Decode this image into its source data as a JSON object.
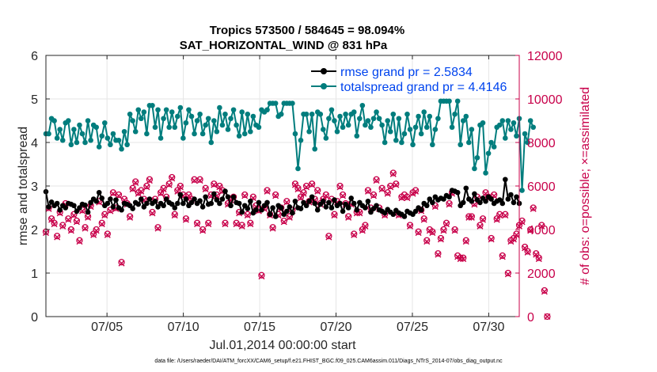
{
  "chart_data": {
    "type": "line",
    "title": "Tropics 573500 / 584645 = 98.094%",
    "subtitle": "SAT_HORIZONTAL_WIND @ 831 hPa",
    "xlabel": "Jul.01,2014 00:00:00 start",
    "ylabel": "rmse and totalspread",
    "y2label": "# of obs: o=possible; ×=assimilated",
    "xlim": [
      1,
      32
    ],
    "ylim": [
      0,
      6
    ],
    "y2lim": [
      0,
      12000
    ],
    "x_ticks": [
      5,
      10,
      15,
      20,
      25,
      30
    ],
    "x_tick_labels": [
      "07/05",
      "07/10",
      "07/15",
      "07/20",
      "07/25",
      "07/30"
    ],
    "y_ticks": [
      0,
      1,
      2,
      3,
      4,
      5,
      6
    ],
    "y_tick_labels": [
      "0",
      "1",
      "2",
      "3",
      "4",
      "5",
      "6"
    ],
    "y2_ticks": [
      0,
      2000,
      4000,
      6000,
      8000,
      10000,
      12000
    ],
    "y2_tick_labels": [
      "0",
      "2000",
      "4000",
      "6000",
      "8000",
      "10000",
      "12000"
    ],
    "grid": true,
    "legend_position": "top-right",
    "footer": "data file: /Users/raeder/DAI/ATM_forcXX/CAM6_setup/f.e21.FHIST_BGC.f09_025.CAM6assim.011/Diags_NTrS_2014-07/obs_diag_output.nc",
    "colors": {
      "rmse": "#000000",
      "totalspread": "#007d7d",
      "obs": "#c8004a",
      "grid": "#e6e6e6"
    },
    "series": [
      {
        "name": "rmse",
        "legend": "rmse grand pr = 2.5834",
        "axis": "left",
        "values": [
          2.87,
          2.52,
          2.63,
          2.55,
          2.6,
          2.45,
          2.55,
          2.5,
          2.6,
          2.58,
          2.55,
          2.42,
          2.5,
          2.58,
          2.56,
          2.4,
          2.62,
          2.7,
          2.65,
          2.85,
          2.72,
          2.55,
          2.6,
          2.7,
          2.52,
          2.68,
          2.5,
          2.45,
          2.6,
          2.58,
          2.55,
          2.48,
          2.62,
          2.58,
          2.7,
          2.52,
          2.6,
          2.7,
          2.6,
          2.65,
          2.52,
          2.6,
          2.55,
          2.7,
          2.62,
          2.58,
          2.5,
          2.6,
          2.8,
          2.6,
          2.7,
          2.55,
          2.62,
          2.7,
          2.6,
          2.66,
          2.52,
          2.75,
          2.58,
          2.6,
          2.82,
          2.68,
          2.6,
          2.7,
          2.88,
          2.75,
          2.55,
          2.75,
          2.62,
          2.6,
          2.4,
          2.55,
          2.48,
          2.65,
          2.38,
          2.45,
          2.62,
          2.45,
          2.55,
          2.62,
          2.35,
          2.5,
          2.3,
          2.55,
          2.5,
          2.35,
          2.42,
          2.52,
          2.38,
          2.65,
          2.5,
          2.48,
          2.62,
          2.55,
          2.65,
          2.75,
          2.6,
          2.45,
          2.58,
          2.65,
          2.52,
          2.62,
          2.5,
          2.68,
          2.55,
          2.6,
          2.42,
          2.58,
          2.5,
          2.72,
          2.6,
          2.45,
          2.62,
          2.55,
          2.5,
          2.65,
          2.4,
          2.48,
          2.55,
          2.45,
          2.42,
          2.38,
          2.46,
          2.4,
          2.35,
          2.44,
          2.38,
          2.35,
          2.3,
          2.42,
          2.38,
          2.35,
          2.42,
          2.5,
          2.45,
          2.6,
          2.55,
          2.7,
          2.62,
          2.75,
          2.68,
          2.72,
          2.7,
          2.78,
          2.75,
          2.9,
          2.88,
          2.85,
          2.55,
          2.62,
          2.95,
          2.7,
          2.65,
          2.82,
          2.68,
          2.62,
          2.72,
          2.65,
          2.75,
          2.7,
          2.6,
          2.65,
          2.68,
          2.6,
          3.15,
          2.7,
          2.8,
          2.62,
          2.75,
          2.6
        ]
      },
      {
        "name": "totalspread",
        "legend": "totalspread grand pr = 4.4146",
        "axis": "left",
        "values": [
          4.2,
          4.2,
          4.55,
          4.5,
          4.1,
          4.3,
          4.05,
          4.45,
          4.5,
          3.95,
          4.3,
          4.0,
          4.4,
          4.2,
          4.0,
          4.5,
          4.05,
          4.4,
          4.35,
          3.9,
          4.15,
          4.45,
          4.1,
          3.95,
          4.2,
          4.05,
          4.05,
          3.85,
          4.25,
          3.95,
          4.65,
          4.5,
          4.25,
          4.75,
          4.55,
          4.7,
          4.2,
          4.85,
          4.85,
          4.35,
          4.75,
          4.1,
          4.55,
          4.75,
          4.35,
          4.7,
          4.35,
          4.6,
          4.8,
          4.1,
          4.45,
          4.75,
          4.6,
          4.2,
          4.5,
          4.65,
          4.2,
          4.4,
          4.55,
          4.0,
          4.5,
          4.25,
          4.8,
          4.4,
          4.65,
          4.3,
          4.55,
          4.75,
          4.4,
          4.15,
          4.7,
          4.2,
          4.65,
          4.25,
          4.6,
          4.4,
          4.35,
          4.75,
          4.7,
          4.75,
          4.9,
          4.9,
          4.9,
          4.6,
          4.65,
          4.9,
          4.9,
          4.9,
          4.9,
          4.2,
          3.4,
          4.05,
          4.65,
          4.65,
          4.25,
          4.65,
          3.85,
          4.7,
          4.65,
          4.3,
          4.1,
          4.55,
          4.75,
          4.5,
          4.25,
          4.6,
          4.35,
          4.65,
          4.4,
          4.65,
          4.7,
          4.15,
          4.55,
          4.85,
          4.4,
          4.5,
          4.35,
          4.55,
          4.7,
          4.55,
          4.4,
          4.0,
          4.5,
          4.25,
          4.65,
          4.05,
          4.55,
          4.0,
          4.2,
          4.65,
          4.3,
          3.95,
          4.35,
          4.6,
          4.2,
          4.7,
          4.35,
          4.6,
          3.95,
          4.3,
          4.55,
          4.95,
          4.95,
          4.95,
          4.95,
          4.35,
          4.65,
          4.95,
          3.95,
          4.5,
          4.6,
          4.0,
          4.3,
          3.4,
          3.65,
          4.4,
          4.45,
          3.3,
          3.75,
          4.0,
          3.9,
          4.35,
          4.4,
          4.5,
          4.1,
          4.5,
          4.3,
          4.45,
          4.15,
          4.55,
          2.9,
          4.2,
          4.0,
          4.5,
          4.35
        ]
      },
      {
        "name": "observations possible",
        "legend": "",
        "axis": "right",
        "values": [
          3900,
          5000,
          4500,
          4300,
          3700,
          4800,
          4200,
          5200,
          4500,
          4000,
          4700,
          4400,
          3500,
          4900,
          4100,
          4600,
          5100,
          3800,
          4000,
          5300,
          4300,
          4700,
          3800,
          4900,
          5700,
          5000,
          5600,
          2500,
          5400,
          5200,
          4600,
          5900,
          6200,
          5700,
          5800,
          5400,
          6000,
          6300,
          4800,
          5400,
          4100,
          5700,
          5900,
          5500,
          6100,
          6400,
          4700,
          5800,
          6000,
          5600,
          4500,
          5600,
          5400,
          6300,
          4300,
          6300,
          4000,
          5900,
          4300,
          5600,
          6100,
          5600,
          6000,
          5800,
          4300,
          5200,
          5400,
          5500,
          4300,
          4800,
          4200,
          5600,
          4700,
          4300,
          5500,
          5100,
          4900,
          1900,
          5000,
          5800,
          4700,
          4100,
          5600,
          4700,
          5000,
          4400,
          5300,
          4600,
          4900,
          6100,
          5900,
          5500,
          5700,
          6000,
          5300,
          6100,
          5400,
          5800,
          5200,
          5400,
          5600,
          3700,
          5400,
          4700,
          5300,
          6000,
          5600,
          5200,
          4600,
          5200,
          3800,
          4800,
          4800,
          4000,
          4200,
          5800,
          5000,
          5600,
          6300,
          5000,
          5900,
          4700,
          5700,
          6000,
          6600,
          6100,
          4700,
          5500,
          5600,
          5500,
          4200,
          5700,
          5800,
          3900,
          4900,
          4500,
          3500,
          4000,
          3900,
          5100,
          2900,
          3600,
          4000,
          4300,
          5200,
          5700,
          4000,
          2800,
          2700,
          2700,
          3500,
          4600,
          4600,
          5200,
          5500,
          4200,
          4500,
          5700,
          5500,
          3600,
          5600,
          4500,
          4700,
          2800,
          4700,
          2000,
          3500,
          3600,
          3800,
          4200,
          4400,
          3200,
          3000,
          4000,
          5000,
          2900,
          2700,
          4200,
          1200,
          0
        ]
      },
      {
        "name": "observations assimilated",
        "legend": "",
        "axis": "right",
        "values": [
          3850,
          4950,
          4450,
          4250,
          3650,
          4750,
          4150,
          5150,
          4450,
          3950,
          4650,
          4350,
          3450,
          4850,
          4050,
          4550,
          5050,
          3750,
          3950,
          5250,
          4250,
          4650,
          3750,
          4850,
          5650,
          4950,
          5550,
          2450,
          5350,
          5150,
          4550,
          5850,
          6150,
          5650,
          5750,
          5350,
          5950,
          6250,
          4750,
          5350,
          4050,
          5650,
          5850,
          5450,
          6050,
          6350,
          4650,
          5750,
          5950,
          5550,
          4450,
          5550,
          5350,
          6250,
          4250,
          6250,
          3950,
          5850,
          4250,
          5550,
          6050,
          5550,
          5950,
          5750,
          4250,
          5150,
          5350,
          5450,
          4250,
          4750,
          4150,
          5550,
          4650,
          4250,
          5450,
          5050,
          4850,
          1850,
          4950,
          5750,
          4650,
          4050,
          5550,
          4650,
          4950,
          4350,
          5250,
          4550,
          4850,
          6050,
          5850,
          5450,
          5650,
          5950,
          5250,
          6050,
          5350,
          5750,
          5150,
          5350,
          5550,
          3650,
          5350,
          4650,
          5250,
          5950,
          5550,
          5150,
          4550,
          5150,
          3750,
          4750,
          4750,
          3950,
          4150,
          5750,
          4950,
          5550,
          6250,
          4950,
          5850,
          4650,
          5650,
          5950,
          6550,
          6050,
          4650,
          5450,
          5550,
          5450,
          4150,
          5650,
          5750,
          3850,
          4850,
          4450,
          3450,
          3950,
          3850,
          5050,
          2850,
          3550,
          3950,
          4250,
          5150,
          5650,
          3950,
          2750,
          2650,
          2650,
          3450,
          4550,
          4550,
          5150,
          5450,
          4150,
          4450,
          5650,
          5450,
          3550,
          5550,
          4450,
          4650,
          2750,
          4650,
          1950,
          3450,
          3550,
          3750,
          4150,
          4350,
          3150,
          2950,
          3950,
          4950,
          2850,
          2650,
          4150,
          1150,
          0
        ]
      }
    ]
  }
}
